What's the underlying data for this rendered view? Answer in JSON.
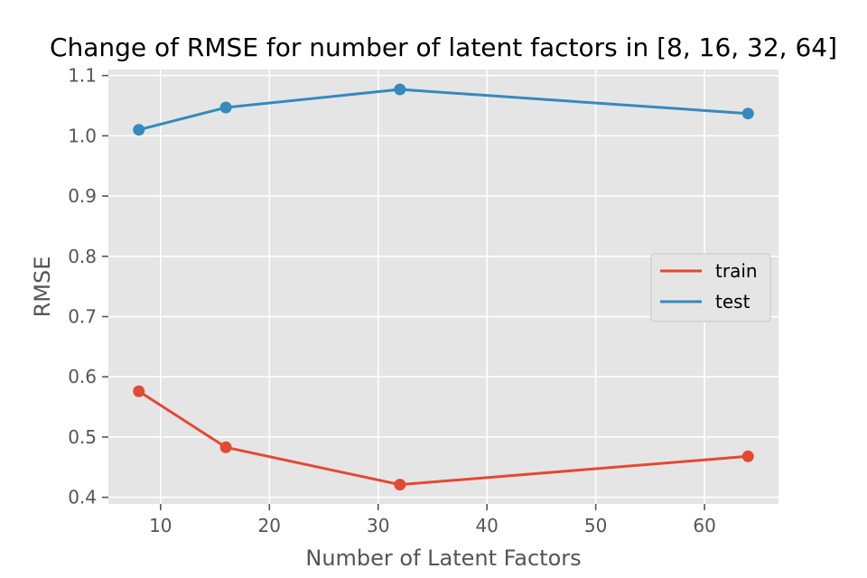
{
  "chart_data": {
    "type": "line",
    "title": "Change of RMSE for number of latent factors in [8, 16, 32, 64]",
    "xlabel": "Number of Latent Factors",
    "ylabel": "RMSE",
    "x": [
      8,
      16,
      32,
      64
    ],
    "series": [
      {
        "name": "train",
        "values": [
          0.576,
          0.483,
          0.421,
          0.468
        ],
        "color": "#E24A33"
      },
      {
        "name": "test",
        "values": [
          1.01,
          1.047,
          1.077,
          1.037
        ],
        "color": "#348ABD"
      }
    ],
    "xlim": [
      5.2,
      66.8
    ],
    "ylim": [
      0.389,
      1.11
    ],
    "xticks": [
      10,
      20,
      30,
      40,
      50,
      60
    ],
    "xtick_labels": [
      "10",
      "20",
      "30",
      "40",
      "50",
      "60"
    ],
    "yticks": [
      0.4,
      0.5,
      0.6,
      0.7,
      0.8,
      0.9,
      1.0,
      1.1
    ],
    "ytick_labels": [
      "0.4",
      "0.5",
      "0.6",
      "0.7",
      "0.8",
      "0.9",
      "1.0",
      "1.1"
    ],
    "grid": true,
    "legend_position": "center-right",
    "style": "ggplot",
    "plot_background": "#E5E5E5",
    "grid_color": "#FFFFFF"
  }
}
